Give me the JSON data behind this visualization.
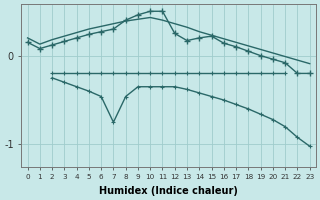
{
  "background_color": "#c8e8e8",
  "grid_color": "#a0cccc",
  "line_color": "#2a6868",
  "xlabel": "Humidex (Indice chaleur)",
  "xticks": [
    0,
    1,
    2,
    3,
    4,
    5,
    6,
    7,
    8,
    9,
    10,
    11,
    12,
    13,
    14,
    15,
    16,
    17,
    18,
    19,
    20,
    21,
    22,
    23
  ],
  "yticks": [
    0,
    -1
  ],
  "xlim": [
    -0.5,
    23.5
  ],
  "ylim": [
    -1.25,
    0.58
  ],
  "line1_x": [
    0,
    1,
    2,
    3,
    4,
    5,
    6,
    7,
    8,
    9,
    10,
    11,
    12,
    13,
    14,
    15,
    16,
    17,
    18,
    19,
    20,
    21,
    22,
    23
  ],
  "line1_y": [
    0.2,
    0.13,
    0.18,
    0.22,
    0.26,
    0.3,
    0.33,
    0.36,
    0.39,
    0.41,
    0.43,
    0.4,
    0.36,
    0.32,
    0.27,
    0.23,
    0.19,
    0.15,
    0.11,
    0.07,
    0.03,
    -0.01,
    -0.05,
    -0.09
  ],
  "line2_x": [
    0,
    1,
    2,
    3,
    4,
    5,
    6,
    7,
    8,
    9,
    10,
    11,
    12,
    13,
    14,
    15,
    16,
    17,
    18,
    19,
    20,
    21,
    22,
    23
  ],
  "line2_y": [
    0.15,
    0.08,
    0.12,
    0.16,
    0.2,
    0.24,
    0.27,
    0.3,
    0.4,
    0.46,
    0.5,
    0.5,
    0.25,
    0.17,
    0.2,
    0.22,
    0.14,
    0.1,
    0.05,
    0.0,
    -0.04,
    -0.08,
    -0.2,
    -0.2
  ],
  "line3_x": [
    2,
    3,
    4,
    5,
    6,
    7,
    8,
    9,
    10,
    11,
    12,
    13,
    14,
    15,
    16,
    17,
    18,
    19,
    20,
    21
  ],
  "line3_y": [
    -0.2,
    -0.2,
    -0.2,
    -0.2,
    -0.2,
    -0.2,
    -0.2,
    -0.2,
    -0.2,
    -0.2,
    -0.2,
    -0.2,
    -0.2,
    -0.2,
    -0.2,
    -0.2,
    -0.2,
    -0.2,
    -0.2,
    -0.2
  ],
  "line4_x": [
    2,
    3,
    4,
    5,
    6,
    7,
    8,
    9,
    10,
    11,
    12,
    13,
    14,
    15,
    16,
    17,
    18,
    19,
    20,
    21,
    22,
    23
  ],
  "line4_y": [
    -0.25,
    -0.3,
    -0.35,
    -0.4,
    -0.46,
    -0.75,
    -0.46,
    -0.35,
    -0.35,
    -0.35,
    -0.35,
    -0.38,
    -0.42,
    -0.46,
    -0.5,
    -0.55,
    -0.6,
    -0.66,
    -0.72,
    -0.8,
    -0.92,
    -1.02
  ]
}
